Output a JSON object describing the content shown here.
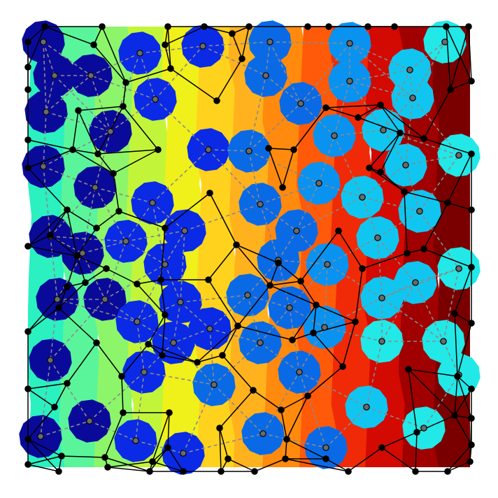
{
  "diagram": {
    "kind": "voronoi-delaunay-mesh",
    "background_bands": [
      "#2bf0c0",
      "#5af59a",
      "#8cf56a",
      "#c2f53a",
      "#f0f01a",
      "#ffd21e",
      "#ffb21e",
      "#ff8a0e",
      "#ff5a0a",
      "#f02a06",
      "#d20a02",
      "#a00000",
      "#7a0000"
    ],
    "disk_colors": [
      "#0a0a9a",
      "#0a2ae6",
      "#0a6ae6",
      "#0a92f0",
      "#10c6f0",
      "#22e8e8",
      "#3af0c6"
    ],
    "node_color": "#000000",
    "voronoi_edge_color": "#000000",
    "delaunay_edge_color": "#8a8a8a",
    "boundary_frame": true,
    "background_color": "#ffffff"
  }
}
